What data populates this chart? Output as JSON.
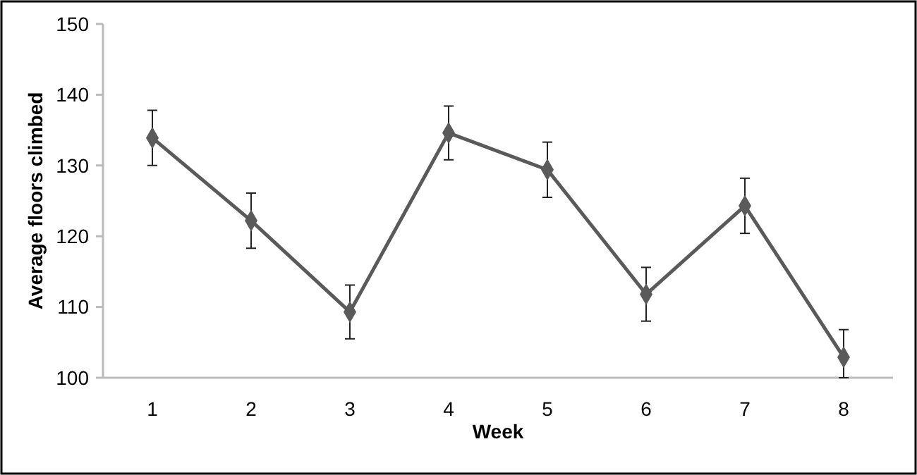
{
  "chart_data": {
    "type": "line",
    "xlabel": "Week",
    "ylabel": "Average floors climbed",
    "categories": [
      "1",
      "2",
      "3",
      "4",
      "5",
      "6",
      "7",
      "8"
    ],
    "series": [
      {
        "color": "#5a5a5a",
        "values": [
          133.9,
          122.2,
          109.3,
          134.6,
          129.4,
          111.8,
          124.3,
          102.9
        ],
        "errors": [
          3.9,
          3.9,
          3.8,
          3.8,
          3.9,
          3.8,
          3.9,
          [
            100,
            106.8
          ]
        ]
      }
    ],
    "ylim": [
      100,
      150
    ],
    "yticks": [
      100,
      110,
      120,
      130,
      140,
      150
    ],
    "grid": false,
    "marker": "diamond",
    "line_style": "solid"
  }
}
